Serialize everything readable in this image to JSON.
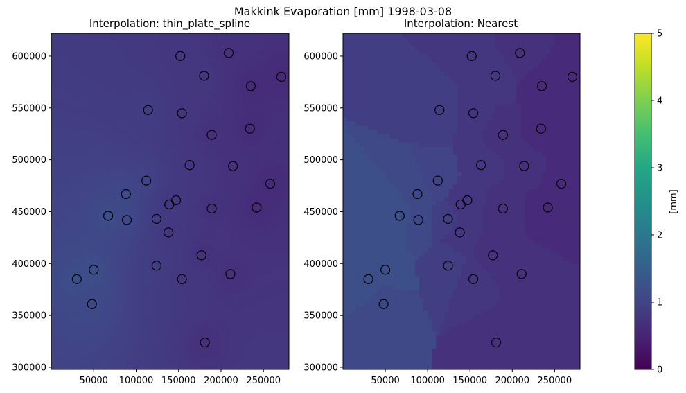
{
  "figure": {
    "title": "Makkink Evaporation [mm] 1998-03-08"
  },
  "colors": {
    "viridis_low": "#440154",
    "viridis_high": "#fde725",
    "marker_edge": "#000000"
  },
  "chart_data": [
    {
      "type": "heatmap",
      "title": "Interpolation: thin_plate_spline",
      "method": "thin_plate_spline",
      "xlim": [
        0,
        280000
      ],
      "ylim": [
        298000,
        622000
      ],
      "xticks": [
        50000,
        100000,
        150000,
        200000,
        250000
      ],
      "yticks": [
        300000,
        350000,
        400000,
        450000,
        500000,
        550000,
        600000
      ],
      "xtick_labels": [
        "50000",
        "100000",
        "150000",
        "200000",
        "250000"
      ],
      "ytick_labels": [
        "300000",
        "350000",
        "400000",
        "450000",
        "500000",
        "550000",
        "600000"
      ],
      "colormap": "viridis",
      "vmin": 0,
      "vmax": 5,
      "grid": false,
      "stations": [
        {
          "x": 152000,
          "y": 600000,
          "value": 0.8
        },
        {
          "x": 209000,
          "y": 603000,
          "value": 0.7
        },
        {
          "x": 180000,
          "y": 581000,
          "value": 0.8
        },
        {
          "x": 271000,
          "y": 580000,
          "value": 0.6
        },
        {
          "x": 235000,
          "y": 571000,
          "value": 0.6
        },
        {
          "x": 114000,
          "y": 548000,
          "value": 0.9
        },
        {
          "x": 154000,
          "y": 545000,
          "value": 0.8
        },
        {
          "x": 189000,
          "y": 524000,
          "value": 0.7
        },
        {
          "x": 234000,
          "y": 530000,
          "value": 0.6
        },
        {
          "x": 163000,
          "y": 495000,
          "value": 0.8
        },
        {
          "x": 214000,
          "y": 494000,
          "value": 0.7
        },
        {
          "x": 258000,
          "y": 477000,
          "value": 0.6
        },
        {
          "x": 112000,
          "y": 480000,
          "value": 1.0
        },
        {
          "x": 88000,
          "y": 467000,
          "value": 1.1
        },
        {
          "x": 147000,
          "y": 461000,
          "value": 0.8
        },
        {
          "x": 139000,
          "y": 457000,
          "value": 0.8
        },
        {
          "x": 189000,
          "y": 453000,
          "value": 0.7
        },
        {
          "x": 242000,
          "y": 454000,
          "value": 0.6
        },
        {
          "x": 67000,
          "y": 446000,
          "value": 1.2
        },
        {
          "x": 89000,
          "y": 442000,
          "value": 1.1
        },
        {
          "x": 124000,
          "y": 443000,
          "value": 0.9
        },
        {
          "x": 138000,
          "y": 430000,
          "value": 0.8
        },
        {
          "x": 124000,
          "y": 398000,
          "value": 0.9
        },
        {
          "x": 177000,
          "y": 408000,
          "value": 0.7
        },
        {
          "x": 30000,
          "y": 385000,
          "value": 1.2
        },
        {
          "x": 50000,
          "y": 394000,
          "value": 1.2
        },
        {
          "x": 154000,
          "y": 385000,
          "value": 0.8
        },
        {
          "x": 211000,
          "y": 390000,
          "value": 0.7
        },
        {
          "x": 48000,
          "y": 361000,
          "value": 1.1
        },
        {
          "x": 181000,
          "y": 324000,
          "value": 0.7
        }
      ]
    },
    {
      "type": "heatmap",
      "title": "Interpolation: Nearest",
      "method": "nearest",
      "xlim": [
        0,
        280000
      ],
      "ylim": [
        298000,
        622000
      ],
      "xticks": [
        50000,
        100000,
        150000,
        200000,
        250000
      ],
      "yticks": [
        300000,
        350000,
        400000,
        450000,
        500000,
        550000,
        600000
      ],
      "xtick_labels": [
        "50000",
        "100000",
        "150000",
        "200000",
        "250000"
      ],
      "ytick_labels": [
        "300000",
        "350000",
        "400000",
        "450000",
        "500000",
        "550000",
        "600000"
      ],
      "colormap": "viridis",
      "vmin": 0,
      "vmax": 5,
      "grid": false
    }
  ],
  "colorbar": {
    "label": "[mm]",
    "ticks": [
      0,
      1,
      2,
      3,
      4,
      5
    ],
    "tick_labels": [
      "0",
      "1",
      "2",
      "3",
      "4",
      "5"
    ],
    "vmin": 0,
    "vmax": 5
  }
}
